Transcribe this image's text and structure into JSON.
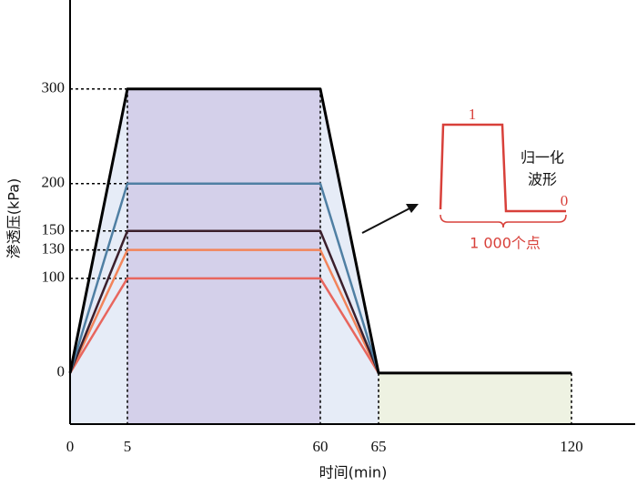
{
  "chart_data": {
    "type": "line",
    "x_label": "时间(min)",
    "y_label": "渗透压(kPa)",
    "x": [
      0,
      5,
      60,
      65,
      120
    ],
    "series": [
      {
        "name": "300",
        "color": "#000000",
        "values": [
          0,
          300,
          300,
          0,
          0
        ]
      },
      {
        "name": "200",
        "color": "#4f7fa3",
        "values": [
          0,
          200,
          200,
          0,
          null
        ]
      },
      {
        "name": "150",
        "color": "#3b1f2c",
        "values": [
          0,
          150,
          150,
          0,
          null
        ]
      },
      {
        "name": "130",
        "color": "#f2845a",
        "values": [
          0,
          130,
          130,
          0,
          null
        ]
      },
      {
        "name": "100",
        "color": "#e8665e",
        "values": [
          0,
          100,
          100,
          0,
          null
        ]
      }
    ],
    "xlim": [
      0,
      138
    ],
    "ylim": [
      -54,
      394
    ],
    "xticks": [
      0,
      5,
      60,
      65,
      120
    ],
    "yticks": [
      0,
      100,
      130,
      150,
      200,
      300
    ],
    "inset": {
      "high_label": "1",
      "low_label": "0",
      "title_line1": "归一化",
      "title_line2": "波形",
      "count_label": "1 000个点"
    }
  }
}
